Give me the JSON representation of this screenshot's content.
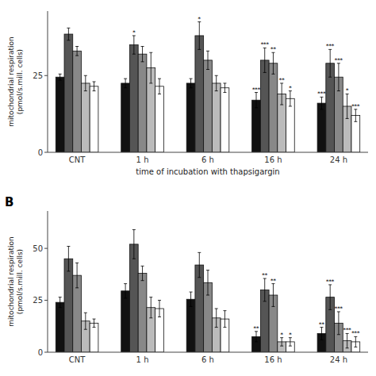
{
  "chart_data": [
    {
      "type": "bar",
      "xlabel": "time of incubation with thapsigargin",
      "ylabel": "mitochondrial respiration\n(pmol/s.mill. cells)",
      "categories": [
        "CNT",
        "1 h",
        "6 h",
        "16 h",
        "24 h"
      ],
      "series": [
        {
          "color": "#111111",
          "values": [
            24.5,
            22.5,
            22.5,
            17.0,
            16.0
          ],
          "errors": [
            1.0,
            1.5,
            1.5,
            2.5,
            2.0
          ],
          "significance": [
            null,
            null,
            null,
            "***",
            "***"
          ]
        },
        {
          "color": "#555555",
          "values": [
            38.5,
            35.0,
            38.0,
            30.0,
            29.0
          ],
          "errors": [
            2.0,
            3.0,
            4.5,
            4.0,
            4.5
          ],
          "significance": [
            null,
            "*",
            "*",
            "***",
            "***"
          ]
        },
        {
          "color": "#888888",
          "values": [
            33.0,
            32.0,
            30.0,
            29.0,
            24.5
          ],
          "errors": [
            1.5,
            2.5,
            3.0,
            3.5,
            4.5
          ],
          "significance": [
            null,
            null,
            null,
            "**",
            "***"
          ]
        },
        {
          "color": "#bbbbbb",
          "values": [
            22.5,
            27.5,
            22.5,
            19.0,
            15.0
          ],
          "errors": [
            2.5,
            5.0,
            2.5,
            3.5,
            4.0
          ],
          "significance": [
            null,
            null,
            null,
            "**",
            "*"
          ]
        },
        {
          "color": "#ffffff",
          "values": [
            21.5,
            21.5,
            21.0,
            17.5,
            12.0
          ],
          "errors": [
            1.5,
            2.5,
            1.5,
            2.5,
            2.0
          ],
          "significance": [
            null,
            null,
            null,
            "*",
            "***"
          ]
        }
      ],
      "ylim": [
        0,
        46
      ],
      "yticks": [
        0,
        25
      ],
      "grid": false
    },
    {
      "type": "bar",
      "panel_label": "B",
      "ylabel": "mitochondrial respiration\n(pmol/s.mill. cells)",
      "categories": [
        "CNT",
        "1 h",
        "6 h",
        "16 h",
        "24 h"
      ],
      "series": [
        {
          "color": "#111111",
          "values": [
            24.0,
            29.5,
            25.5,
            7.5,
            9.0
          ],
          "errors": [
            2.5,
            3.5,
            3.5,
            2.5,
            3.0
          ],
          "significance": [
            null,
            null,
            null,
            "**",
            "**"
          ]
        },
        {
          "color": "#555555",
          "values": [
            45.0,
            52.0,
            42.0,
            30.0,
            26.5
          ],
          "errors": [
            6.0,
            7.0,
            6.0,
            5.5,
            6.0
          ],
          "significance": [
            null,
            null,
            null,
            "**",
            "***"
          ]
        },
        {
          "color": "#888888",
          "values": [
            37.0,
            38.0,
            33.5,
            27.5,
            14.0
          ],
          "errors": [
            6.0,
            3.5,
            6.0,
            5.5,
            5.5
          ],
          "significance": [
            null,
            null,
            null,
            "**",
            "***"
          ]
        },
        {
          "color": "#bbbbbb",
          "values": [
            15.0,
            21.5,
            16.5,
            5.0,
            5.5
          ],
          "errors": [
            4.0,
            5.0,
            4.5,
            2.0,
            3.5
          ],
          "significance": [
            null,
            null,
            null,
            "*",
            "***"
          ]
        },
        {
          "color": "#ffffff",
          "values": [
            14.0,
            21.0,
            16.0,
            5.0,
            5.0
          ],
          "errors": [
            2.0,
            4.0,
            4.0,
            2.0,
            2.5
          ],
          "significance": [
            null,
            null,
            null,
            "*",
            "***"
          ]
        }
      ],
      "ylim": [
        0,
        68
      ],
      "yticks": [
        0,
        25,
        50
      ],
      "grid": false
    }
  ]
}
